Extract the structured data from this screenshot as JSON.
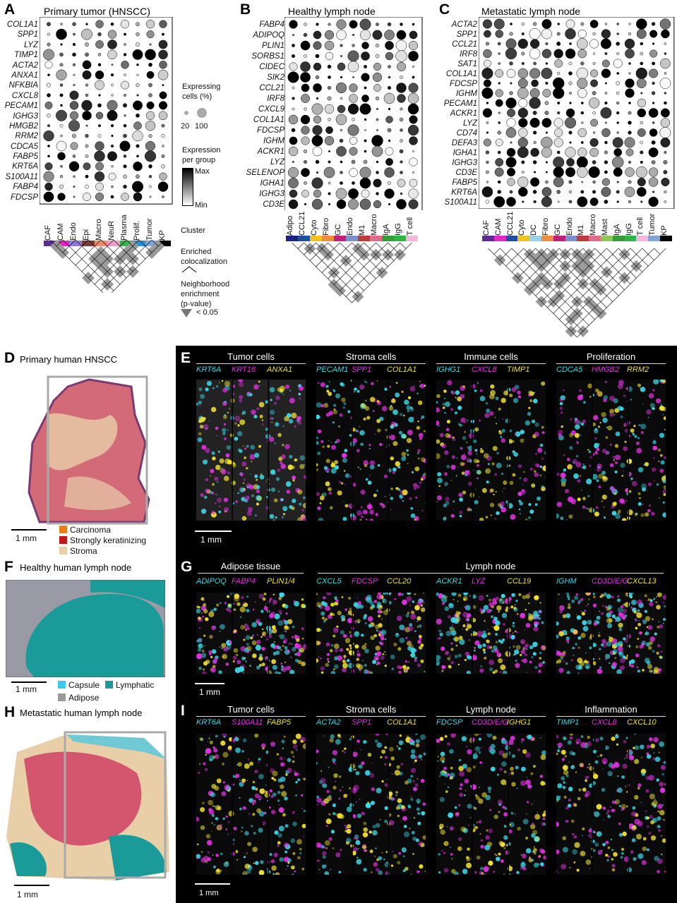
{
  "panels": {
    "A": {
      "label": "A",
      "title": "Primary tumor (HNSCC)",
      "genes": [
        "COL1A1",
        "SPP1",
        "LYZ",
        "TIMP1",
        "ACTA2",
        "ANXA1",
        "NFKBIA",
        "CXCL8",
        "PECAM1",
        "IGHG3",
        "HMGB2",
        "RRM2",
        "CDCA5",
        "FABP5",
        "KRT6A",
        "S100A11",
        "FABP4",
        "FDCSP"
      ],
      "clusters": [
        "CAF",
        "CAM",
        "Endo",
        "Epi",
        "Macro",
        "NeuR",
        "Plasma",
        "Prolif.",
        "Tumor",
        "KP"
      ],
      "colors": [
        "#5b2d8e",
        "#e026c4",
        "#8f7ad6",
        "#7a3a3a",
        "#f08a6a",
        "#f0a0c8",
        "#2bb54a",
        "#2a8fd0",
        "#7fa6d6",
        "#000000"
      ]
    },
    "B": {
      "label": "B",
      "title": "Healthy lymph node",
      "genes": [
        "FABP4",
        "ADIPOQ",
        "PLIN1",
        "SORBS1",
        "CIDEC",
        "SIK2",
        "CCL21",
        "IRF8",
        "CXCL9",
        "COL1A1",
        "FDCSP",
        "IGHM",
        "ACKR1",
        "LYZ",
        "SELENOP",
        "IGHA1",
        "IGHG3",
        "CD3E"
      ],
      "clusters": [
        "Adipo",
        "CCL21",
        "Cyto",
        "Fibro",
        "GC",
        "Endo",
        "M1",
        "Macro",
        "IgA",
        "IgG",
        "T cell"
      ],
      "colors": [
        "#1a237e",
        "#1e50a0",
        "#f0c419",
        "#f08a3c",
        "#c21f7a",
        "#7c8fcf",
        "#c03a3a",
        "#e06a8a",
        "#3a9a3a",
        "#2bb54a",
        "#f4b8e0"
      ]
    },
    "C": {
      "label": "C",
      "title": "Metastatic lymph node",
      "genes": [
        "ACTA2",
        "SPP1",
        "CCL21",
        "IRF8",
        "SAT1",
        "COL1A1",
        "FDCSP",
        "IGHM",
        "PECAM1",
        "ACKR1",
        "LYZ",
        "CD74",
        "DEFA3",
        "IGHA1",
        "IGHG3",
        "CD3E",
        "FABP5",
        "KRT6A",
        "S100A11"
      ],
      "clusters": [
        "CAF",
        "CAM",
        "CCL21",
        "Cyto",
        "DC",
        "Fibro",
        "GC",
        "Endo",
        "M1",
        "Macro",
        "Mast",
        "IgA",
        "IgG",
        "T cell",
        "Tumor",
        "KP"
      ],
      "colors": [
        "#5b2d8e",
        "#e026c4",
        "#1e50a0",
        "#f0c419",
        "#9ad0e8",
        "#f08a3c",
        "#c21f7a",
        "#7c8fcf",
        "#c03a3a",
        "#e06a8a",
        "#8fc85a",
        "#3a9a3a",
        "#2bb54a",
        "#f4b8e0",
        "#7fa6d6",
        "#000000"
      ]
    }
  },
  "legend": {
    "expr_title": "Expressing\ncells (%)",
    "expr_sizes": [
      "20",
      "100"
    ],
    "expr_group_title": "Expression\nper group",
    "max": "Max",
    "min": "Min",
    "cluster": "Cluster",
    "enriched": "Enriched\ncolocalization",
    "neighborhood": "Neighborhood\nenrichment\n(p-value)",
    "pval": "< 0.05"
  },
  "D": {
    "label": "D",
    "title": "Primary human HNSCC",
    "scale": "1 mm",
    "legend": [
      {
        "label": "Carcinoma",
        "color": "#e8801a"
      },
      {
        "label": "Strongly keratinizing",
        "color": "#c01818"
      },
      {
        "label": "Stroma",
        "color": "#e8cfa8"
      }
    ]
  },
  "F": {
    "label": "F",
    "title": "Healthy human lymph node",
    "scale": "1 mm",
    "legend": [
      {
        "label": "Capsule",
        "color": "#3cc8e8"
      },
      {
        "label": "Lymphatic",
        "color": "#1a9a98"
      },
      {
        "label": "Adipose",
        "color": "#9a9a9a"
      }
    ]
  },
  "H": {
    "label": "H",
    "title": "Metastatic human lymph node",
    "scale": "1 mm"
  },
  "E": {
    "label": "E",
    "scale": "1 mm",
    "groups": [
      {
        "title": "Tumor cells",
        "ch": [
          "KRT6A",
          "KRT16",
          "ANXA1"
        ]
      },
      {
        "title": "Stroma cells",
        "ch": [
          "PECAM1",
          "SPP1",
          "COL1A1"
        ]
      },
      {
        "title": "Immune cells",
        "ch": [
          "IGHG1",
          "CXCL8",
          "TIMP1"
        ]
      },
      {
        "title": "Proliferation",
        "ch": [
          "CDCA5",
          "HMGB2",
          "RRM2"
        ]
      }
    ]
  },
  "G": {
    "label": "G",
    "scale": "1 mm",
    "titles": [
      "Adipose tissue",
      "Lymph node"
    ],
    "groups": [
      {
        "ch": [
          "ADIPOQ",
          "FABP4",
          "PLIN1/4"
        ]
      },
      {
        "ch": [
          "CXCL5",
          "FDCSP",
          "CCL20"
        ]
      },
      {
        "ch": [
          "ACKR1",
          "LYZ",
          "CCL19"
        ]
      },
      {
        "ch": [
          "IGHM",
          "CD3D/E/G",
          "CXCL13"
        ]
      }
    ]
  },
  "I": {
    "label": "I",
    "scale": "1 mm",
    "groups": [
      {
        "title": "Tumor cells",
        "ch": [
          "KRT6A",
          "S100A11",
          "FABP5"
        ]
      },
      {
        "title": "Stroma cells",
        "ch": [
          "ACTA2",
          "SPP1",
          "COL1A1"
        ]
      },
      {
        "title": "Lymph node",
        "ch": [
          "FDCSP",
          "CD3D/E/G",
          "IGHG1"
        ]
      },
      {
        "title": "Inflammation",
        "ch": [
          "TIMP1",
          "CXCL8",
          "CXCL10"
        ]
      }
    ]
  },
  "channel_colors": [
    "#3ad8e8",
    "#e030e0",
    "#f0e030"
  ]
}
